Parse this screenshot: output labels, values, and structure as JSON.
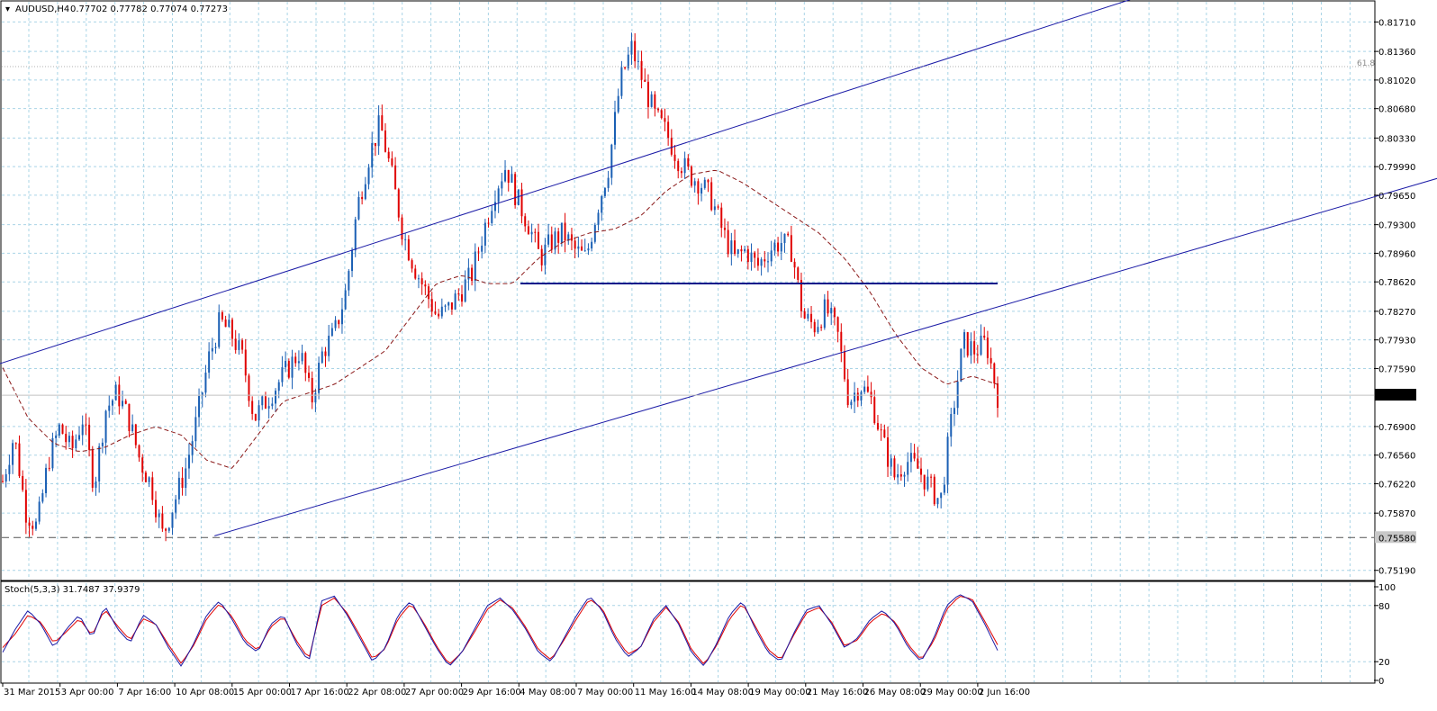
{
  "header": {
    "symbol": "AUDUSD,H4",
    "ohlc": "0.77702 0.77782 0.77074 0.77273"
  },
  "colors": {
    "grid": "#a9d4e6",
    "bull": "#1a5fb4",
    "bear": "#e00000",
    "channel": "#1a1aa6",
    "ma": "#8b1a1a",
    "stoch_main": "#1a1aa6",
    "stoch_signal": "#e00000",
    "price_badge": "#000000"
  },
  "chart_data": [
    {
      "type": "candlestick",
      "title": "AUDUSD,H4",
      "ylim": [
        0.7508,
        0.8195
      ],
      "price_axis_ticks": [
        "0.81710",
        "0.81360",
        "0.81020",
        "0.80680",
        "0.80330",
        "0.79990",
        "0.79650",
        "0.79300",
        "0.78960",
        "0.78620",
        "0.78270",
        "0.77930",
        "0.77590",
        "0.76900",
        "0.76560",
        "0.76220",
        "0.75870",
        "0.75190"
      ],
      "time_axis_ticks": [
        "31 Mar 2015",
        "3 Apr 00:00",
        "7 Apr 16:00",
        "10 Apr 08:00",
        "15 Apr 00:00",
        "17 Apr 16:00",
        "22 Apr 08:00",
        "27 Apr 00:00",
        "29 Apr 16:00",
        "4 May 08:00",
        "7 May 00:00",
        "11 May 16:00",
        "14 May 08:00",
        "19 May 00:00",
        "21 May 16:00",
        "26 May 08:00",
        "29 May 00:00",
        "2 Jun 16:00"
      ],
      "current_price": "0.77273",
      "support_level": "0.75580",
      "fib_label": "61.8",
      "horizontal_line": 0.786,
      "fib_level": 0.8118,
      "anchors": [
        0.7625,
        0.768,
        0.759,
        0.757,
        0.765,
        0.769,
        0.766,
        0.77,
        0.762,
        0.771,
        0.773,
        0.77,
        0.765,
        0.762,
        0.756,
        0.76,
        0.764,
        0.77,
        0.777,
        0.7815,
        0.78,
        0.777,
        0.77,
        0.772,
        0.774,
        0.776,
        0.778,
        0.772,
        0.778,
        0.78,
        0.785,
        0.795,
        0.801,
        0.805,
        0.799,
        0.792,
        0.788,
        0.785,
        0.782,
        0.783,
        0.785,
        0.787,
        0.792,
        0.797,
        0.8,
        0.796,
        0.793,
        0.789,
        0.791,
        0.792,
        0.79,
        0.789,
        0.795,
        0.8,
        0.81,
        0.814,
        0.81,
        0.806,
        0.804,
        0.801,
        0.799,
        0.798,
        0.796,
        0.792,
        0.789,
        0.79,
        0.788,
        0.79,
        0.791,
        0.79,
        0.782,
        0.781,
        0.783,
        0.78,
        0.772,
        0.774,
        0.772,
        0.767,
        0.763,
        0.765,
        0.764,
        0.762,
        0.76,
        0.77,
        0.779,
        0.778,
        0.779,
        0.7727
      ],
      "ma_anchors": [
        0.776,
        0.77,
        0.767,
        0.766,
        0.7665,
        0.768,
        0.769,
        0.768,
        0.765,
        0.764,
        0.768,
        0.772,
        0.773,
        0.774,
        0.776,
        0.778,
        0.782,
        0.786,
        0.787,
        0.786,
        0.786,
        0.789,
        0.791,
        0.792,
        0.7925,
        0.794,
        0.797,
        0.799,
        0.7995,
        0.798,
        0.796,
        0.794,
        0.792,
        0.789,
        0.785,
        0.78,
        0.776,
        0.774,
        0.775,
        0.774
      ],
      "channel_upper": [
        [
          -0.02,
          0.7755
        ],
        [
          0.865,
          0.822
        ]
      ],
      "channel_lower": [
        [
          0.155,
          0.756
        ],
        [
          1.455,
          0.818
        ]
      ]
    },
    {
      "type": "line",
      "title": "Stoch(5,3,3) 31.7487 37.9379",
      "ylim": [
        0,
        100
      ],
      "axis_ticks": [
        "100",
        "80",
        "20",
        "0"
      ],
      "series": [
        {
          "name": "main",
          "values": [
            30,
            55,
            75,
            60,
            35,
            55,
            70,
            45,
            80,
            55,
            40,
            70,
            60,
            35,
            15,
            40,
            70,
            85,
            65,
            40,
            30,
            60,
            70,
            40,
            20,
            85,
            90,
            70,
            45,
            20,
            35,
            70,
            85,
            60,
            35,
            15,
            30,
            55,
            80,
            88,
            75,
            55,
            30,
            20,
            45,
            70,
            90,
            75,
            45,
            25,
            35,
            65,
            80,
            60,
            30,
            15,
            40,
            70,
            85,
            55,
            30,
            20,
            50,
            75,
            80,
            60,
            35,
            45,
            65,
            75,
            60,
            35,
            20,
            45,
            80,
            92,
            85,
            60,
            32
          ]
        },
        {
          "name": "signal",
          "values": [
            35,
            50,
            70,
            62,
            40,
            52,
            66,
            48,
            76,
            58,
            43,
            66,
            60,
            38,
            18,
            38,
            66,
            82,
            68,
            43,
            32,
            57,
            68,
            43,
            23,
            80,
            88,
            72,
            48,
            23,
            34,
            66,
            82,
            62,
            37,
            17,
            30,
            52,
            76,
            86,
            77,
            57,
            33,
            22,
            43,
            66,
            87,
            77,
            48,
            28,
            35,
            62,
            78,
            62,
            33,
            17,
            38,
            66,
            82,
            58,
            33,
            22,
            48,
            72,
            78,
            62,
            37,
            43,
            62,
            72,
            62,
            38,
            22,
            42,
            76,
            90,
            87,
            63,
            38
          ]
        }
      ]
    }
  ]
}
